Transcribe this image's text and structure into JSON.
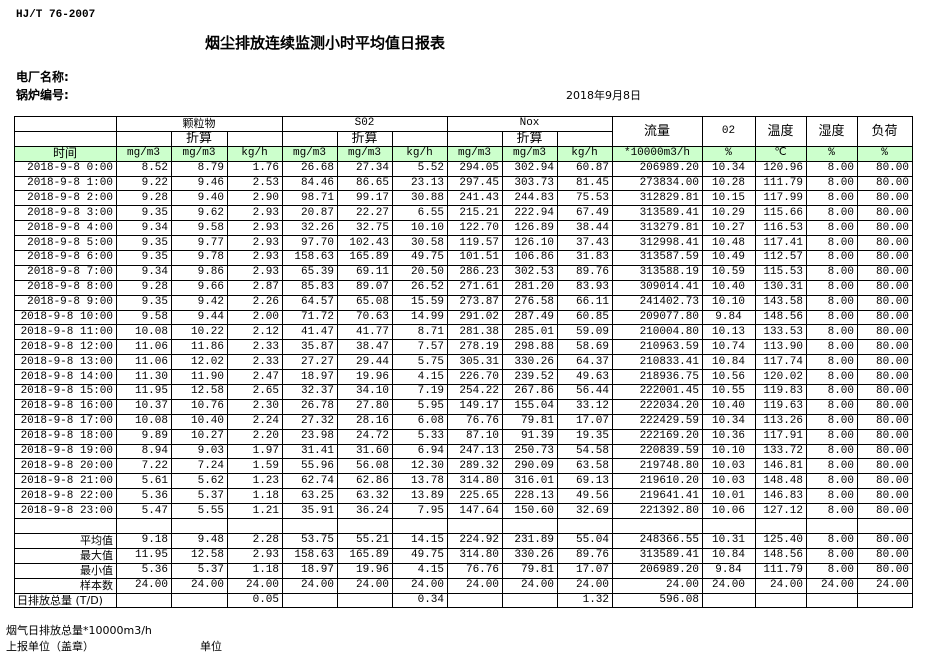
{
  "header": {
    "standard": "HJ/T  76-2007",
    "title": "烟尘排放连续监测小时平均值日报表",
    "plant_label": "电厂名称:",
    "boiler_label": "锅炉编号:",
    "date": "2018年9月8日"
  },
  "table": {
    "groups": {
      "particulate": "颗粒物",
      "so2": "S02",
      "nox": "Nox",
      "flow": "流量",
      "o2": "02",
      "temp": "温度",
      "humidity": "湿度",
      "load": "负荷"
    },
    "converted_label": "折算",
    "time_header": "时间",
    "units": [
      "mg/m3",
      "mg/m3",
      "kg/h",
      "mg/m3",
      "mg/m3",
      "kg/h",
      "mg/m3",
      "mg/m3",
      "kg/h",
      "*10000m3/h",
      "%",
      "℃",
      "%",
      "%"
    ],
    "rows": [
      [
        "2018-9-8 0:00",
        "8.52",
        "8.79",
        "1.76",
        "26.68",
        "27.34",
        "5.52",
        "294.05",
        "302.94",
        "60.87",
        "206989.20",
        "10.34",
        "120.96",
        "8.00",
        "80.00"
      ],
      [
        "2018-9-8 1:00",
        "9.22",
        "9.46",
        "2.53",
        "84.46",
        "86.65",
        "23.13",
        "297.45",
        "303.73",
        "81.45",
        "273834.00",
        "10.28",
        "111.79",
        "8.00",
        "80.00"
      ],
      [
        "2018-9-8 2:00",
        "9.28",
        "9.40",
        "2.90",
        "98.71",
        "99.17",
        "30.88",
        "241.43",
        "244.83",
        "75.53",
        "312829.81",
        "10.15",
        "117.99",
        "8.00",
        "80.00"
      ],
      [
        "2018-9-8 3:00",
        "9.35",
        "9.62",
        "2.93",
        "20.87",
        "22.27",
        "6.55",
        "215.21",
        "222.94",
        "67.49",
        "313589.41",
        "10.29",
        "115.66",
        "8.00",
        "80.00"
      ],
      [
        "2018-9-8 4:00",
        "9.34",
        "9.58",
        "2.93",
        "32.26",
        "32.75",
        "10.10",
        "122.70",
        "126.89",
        "38.44",
        "313279.81",
        "10.27",
        "116.53",
        "8.00",
        "80.00"
      ],
      [
        "2018-9-8 5:00",
        "9.35",
        "9.77",
        "2.93",
        "97.70",
        "102.43",
        "30.58",
        "119.57",
        "126.10",
        "37.43",
        "312998.41",
        "10.48",
        "117.41",
        "8.00",
        "80.00"
      ],
      [
        "2018-9-8 6:00",
        "9.35",
        "9.78",
        "2.93",
        "158.63",
        "165.89",
        "49.75",
        "101.51",
        "106.86",
        "31.83",
        "313587.59",
        "10.49",
        "112.57",
        "8.00",
        "80.00"
      ],
      [
        "2018-9-8 7:00",
        "9.34",
        "9.86",
        "2.93",
        "65.39",
        "69.11",
        "20.50",
        "286.23",
        "302.53",
        "89.76",
        "313588.19",
        "10.59",
        "115.53",
        "8.00",
        "80.00"
      ],
      [
        "2018-9-8 8:00",
        "9.28",
        "9.66",
        "2.87",
        "85.83",
        "89.07",
        "26.52",
        "271.61",
        "281.20",
        "83.93",
        "309014.41",
        "10.40",
        "130.31",
        "8.00",
        "80.00"
      ],
      [
        "2018-9-8 9:00",
        "9.35",
        "9.42",
        "2.26",
        "64.57",
        "65.08",
        "15.59",
        "273.87",
        "276.58",
        "66.11",
        "241402.73",
        "10.10",
        "143.58",
        "8.00",
        "80.00"
      ],
      [
        "2018-9-8 10:00",
        "9.58",
        "9.44",
        "2.00",
        "71.72",
        "70.63",
        "14.99",
        "291.02",
        "287.49",
        "60.85",
        "209077.80",
        "9.84",
        "148.56",
        "8.00",
        "80.00"
      ],
      [
        "2018-9-8 11:00",
        "10.08",
        "10.22",
        "2.12",
        "41.47",
        "41.77",
        "8.71",
        "281.38",
        "285.01",
        "59.09",
        "210004.80",
        "10.13",
        "133.53",
        "8.00",
        "80.00"
      ],
      [
        "2018-9-8 12:00",
        "11.06",
        "11.86",
        "2.33",
        "35.87",
        "38.47",
        "7.57",
        "278.19",
        "298.88",
        "58.69",
        "210963.59",
        "10.74",
        "113.90",
        "8.00",
        "80.00"
      ],
      [
        "2018-9-8 13:00",
        "11.06",
        "12.02",
        "2.33",
        "27.27",
        "29.44",
        "5.75",
        "305.31",
        "330.26",
        "64.37",
        "210833.41",
        "10.84",
        "117.74",
        "8.00",
        "80.00"
      ],
      [
        "2018-9-8 14:00",
        "11.30",
        "11.90",
        "2.47",
        "18.97",
        "19.96",
        "4.15",
        "226.70",
        "239.52",
        "49.63",
        "218936.75",
        "10.56",
        "120.02",
        "8.00",
        "80.00"
      ],
      [
        "2018-9-8 15:00",
        "11.95",
        "12.58",
        "2.65",
        "32.37",
        "34.10",
        "7.19",
        "254.22",
        "267.86",
        "56.44",
        "222001.45",
        "10.55",
        "119.83",
        "8.00",
        "80.00"
      ],
      [
        "2018-9-8 16:00",
        "10.37",
        "10.76",
        "2.30",
        "26.78",
        "27.80",
        "5.95",
        "149.17",
        "155.04",
        "33.12",
        "222034.20",
        "10.40",
        "119.63",
        "8.00",
        "80.00"
      ],
      [
        "2018-9-8 17:00",
        "10.08",
        "10.40",
        "2.24",
        "27.32",
        "28.16",
        "6.08",
        "76.76",
        "79.81",
        "17.07",
        "222429.59",
        "10.34",
        "113.26",
        "8.00",
        "80.00"
      ],
      [
        "2018-9-8 18:00",
        "9.89",
        "10.27",
        "2.20",
        "23.98",
        "24.72",
        "5.33",
        "87.10",
        "91.39",
        "19.35",
        "222169.20",
        "10.36",
        "117.91",
        "8.00",
        "80.00"
      ],
      [
        "2018-9-8 19:00",
        "8.94",
        "9.03",
        "1.97",
        "31.41",
        "31.60",
        "6.94",
        "247.13",
        "250.73",
        "54.58",
        "220839.59",
        "10.10",
        "133.72",
        "8.00",
        "80.00"
      ],
      [
        "2018-9-8 20:00",
        "7.22",
        "7.24",
        "1.59",
        "55.96",
        "56.08",
        "12.30",
        "289.32",
        "290.09",
        "63.58",
        "219748.80",
        "10.03",
        "146.81",
        "8.00",
        "80.00"
      ],
      [
        "2018-9-8 21:00",
        "5.61",
        "5.62",
        "1.23",
        "62.74",
        "62.86",
        "13.78",
        "314.80",
        "316.01",
        "69.13",
        "219610.20",
        "10.03",
        "148.48",
        "8.00",
        "80.00"
      ],
      [
        "2018-9-8 22:00",
        "5.36",
        "5.37",
        "1.18",
        "63.25",
        "63.32",
        "13.89",
        "225.65",
        "228.13",
        "49.56",
        "219641.41",
        "10.01",
        "146.83",
        "8.00",
        "80.00"
      ],
      [
        "2018-9-8 23:00",
        "5.47",
        "5.55",
        "1.21",
        "35.91",
        "36.24",
        "7.95",
        "147.64",
        "150.60",
        "32.69",
        "221392.80",
        "10.06",
        "127.12",
        "8.00",
        "80.00"
      ]
    ],
    "stats": [
      [
        "平均值",
        "9.18",
        "9.48",
        "2.28",
        "53.75",
        "55.21",
        "14.15",
        "224.92",
        "231.89",
        "55.04",
        "248366.55",
        "10.31",
        "125.40",
        "8.00",
        "80.00"
      ],
      [
        "最大值",
        "11.95",
        "12.58",
        "2.93",
        "158.63",
        "165.89",
        "49.75",
        "314.80",
        "330.26",
        "89.76",
        "313589.41",
        "10.84",
        "148.56",
        "8.00",
        "80.00"
      ],
      [
        "最小值",
        "5.36",
        "5.37",
        "1.18",
        "18.97",
        "19.96",
        "4.15",
        "76.76",
        "79.81",
        "17.07",
        "206989.20",
        "9.84",
        "111.79",
        "8.00",
        "80.00"
      ],
      [
        "样本数",
        "24.00",
        "24.00",
        "24.00",
        "24.00",
        "24.00",
        "24.00",
        "24.00",
        "24.00",
        "24.00",
        "24.00",
        "24.00",
        "24.00",
        "24.00",
        "24.00"
      ]
    ],
    "daily_total": [
      "日排放总量 (T/D)",
      "",
      "",
      "0.05",
      "",
      "",
      "0.34",
      "",
      "",
      "1.32",
      "596.08",
      "",
      "",
      "",
      ""
    ]
  },
  "footer": {
    "flue_gas_total": "烟气日排放总量*10000m3/h",
    "reporting_unit": "上报单位（盖章）",
    "unit": "单位"
  }
}
